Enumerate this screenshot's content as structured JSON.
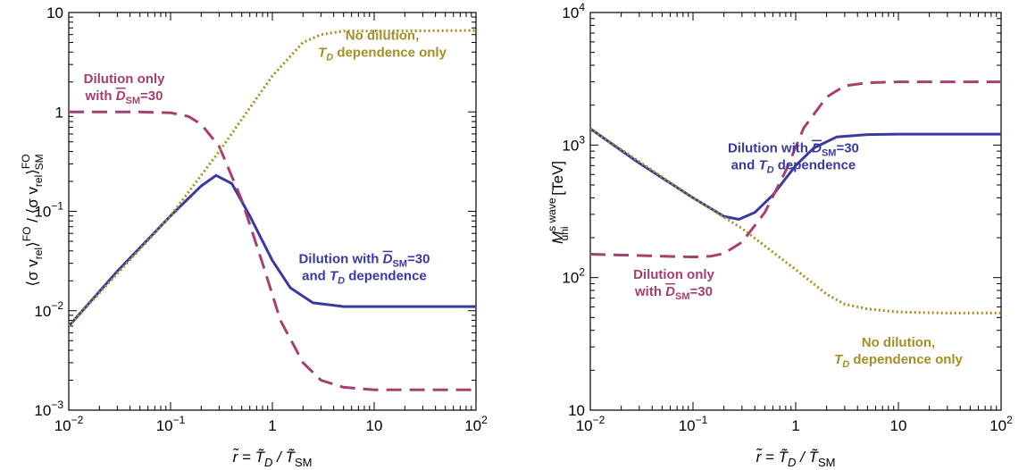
{
  "colors": {
    "solid": "#3a3a9c",
    "dashed": "#a3406f",
    "dotted": "#a38f2a"
  },
  "chart_data": [
    {
      "type": "line",
      "x_scale": "log",
      "y_scale": "log",
      "xlim": [
        0.01,
        100
      ],
      "ylim": [
        0.001,
        10
      ],
      "xlabel_main": "r̃ = T̃",
      "xlabel_sub1": "D",
      "xlabel_mid": " / T̃",
      "xlabel_sub2": "SM",
      "ylabel_1": "⟨σ v",
      "ylabel_rel1": "rel",
      "ylabel_2": "⟩",
      "ylabel_fo": "FO",
      "ylabel_3": " / ⟨σ v",
      "ylabel_rel2": "rel",
      "ylabel_4": "⟩",
      "ylabel_fo2": "FO",
      "ylabel_sm": "SM",
      "xticks": [
        {
          "v": 0.01,
          "b": "10",
          "e": "−2"
        },
        {
          "v": 0.1,
          "b": "10",
          "e": "−1"
        },
        {
          "v": 1,
          "b": "1",
          "e": ""
        },
        {
          "v": 10,
          "b": "10",
          "e": ""
        },
        {
          "v": 100,
          "b": "10",
          "e": "2"
        }
      ],
      "yticks": [
        {
          "v": 0.001,
          "b": "10",
          "e": "−3"
        },
        {
          "v": 0.01,
          "b": "10",
          "e": "−2"
        },
        {
          "v": 0.1,
          "b": "10",
          "e": "−1"
        },
        {
          "v": 1,
          "b": "1",
          "e": ""
        },
        {
          "v": 10,
          "b": "10",
          "e": ""
        }
      ],
      "series": [
        {
          "style": "solid",
          "x": [
            0.01,
            0.03,
            0.1,
            0.2,
            0.28,
            0.4,
            0.6,
            1.0,
            1.5,
            2.5,
            5,
            10,
            30,
            100
          ],
          "y": [
            0.007,
            0.025,
            0.09,
            0.18,
            0.23,
            0.19,
            0.09,
            0.032,
            0.017,
            0.012,
            0.011,
            0.011,
            0.011,
            0.011
          ]
        },
        {
          "style": "dashed",
          "x": [
            0.01,
            0.05,
            0.1,
            0.15,
            0.2,
            0.3,
            0.5,
            0.8,
            1.2,
            2,
            3,
            5,
            10,
            100
          ],
          "y": [
            1.0,
            1.0,
            0.98,
            0.9,
            0.75,
            0.45,
            0.13,
            0.03,
            0.008,
            0.003,
            0.002,
            0.0017,
            0.0016,
            0.0016
          ]
        },
        {
          "style": "dotted",
          "x": [
            0.01,
            0.1,
            0.3,
            1,
            2,
            3,
            5,
            10,
            100
          ],
          "y": [
            0.007,
            0.09,
            0.4,
            2.3,
            5.0,
            6.0,
            6.5,
            6.5,
            6.6
          ]
        }
      ],
      "annotations": [
        {
          "style": "dashed",
          "x": 0.035,
          "y": 1.95,
          "line1": "Dilution only",
          "line2_pre": "with ",
          "line2_var": "D",
          "line2_sub": "SM",
          "line2_post": "=30"
        },
        {
          "style": "dotted",
          "x": 12,
          "y": 5.3,
          "line1": "No dilution,",
          "line2_pre": "",
          "line2_var": "T",
          "line2_sub": "D",
          "line2_post": " dependence only"
        },
        {
          "style": "solid",
          "x": 8,
          "y": 0.03,
          "line1_pre": "Dilution with ",
          "line1_var": "D",
          "line1_sub": "SM",
          "line1_post": "=30",
          "line2_pre": "and ",
          "line2_var": "T",
          "line2_sub": "D",
          "line2_post": " dependence"
        }
      ]
    },
    {
      "type": "line",
      "x_scale": "log",
      "y_scale": "log",
      "xlim": [
        0.01,
        100
      ],
      "ylim": [
        10,
        10000
      ],
      "xlabel_main": "r̃ = T̃",
      "xlabel_sub1": "D",
      "xlabel_mid": " / T̃",
      "xlabel_sub2": "SM",
      "ylabel_1": "M",
      "ylabel_sup": "s wave",
      "ylabel_sub": "uni",
      "ylabel_unit": "[TeV]",
      "xticks": [
        {
          "v": 0.01,
          "b": "10",
          "e": "−2"
        },
        {
          "v": 0.1,
          "b": "10",
          "e": "−1"
        },
        {
          "v": 1,
          "b": "1",
          "e": ""
        },
        {
          "v": 10,
          "b": "10",
          "e": ""
        },
        {
          "v": 100,
          "b": "10",
          "e": "2"
        }
      ],
      "yticks": [
        {
          "v": 10,
          "b": "10",
          "e": ""
        },
        {
          "v": 100,
          "b": "10",
          "e": "2"
        },
        {
          "v": 1000,
          "b": "10",
          "e": "3"
        },
        {
          "v": 10000,
          "b": "10",
          "e": "4"
        }
      ],
      "series": [
        {
          "style": "solid",
          "x": [
            0.01,
            0.03,
            0.1,
            0.2,
            0.28,
            0.4,
            0.6,
            1,
            1.5,
            2.5,
            5,
            10,
            100
          ],
          "y": [
            1330,
            730,
            400,
            290,
            275,
            310,
            420,
            700,
            950,
            1150,
            1200,
            1210,
            1210
          ]
        },
        {
          "style": "dashed",
          "x": [
            0.01,
            0.05,
            0.1,
            0.15,
            0.2,
            0.3,
            0.5,
            0.8,
            1.2,
            2,
            3,
            5,
            10,
            100
          ],
          "y": [
            150,
            145,
            143,
            145,
            152,
            185,
            310,
            640,
            1350,
            2300,
            2800,
            2950,
            3000,
            3000
          ]
        },
        {
          "style": "dotted",
          "x": [
            0.01,
            0.1,
            0.3,
            1,
            2,
            3,
            5,
            10,
            30,
            100
          ],
          "y": [
            1330,
            400,
            235,
            115,
            75,
            63,
            58,
            55,
            54,
            54
          ]
        }
      ],
      "annotations": [
        {
          "style": "solid",
          "x": 0.95,
          "y": 880,
          "line1_pre": "Dilution with ",
          "line1_var": "D",
          "line1_sub": "SM",
          "line1_post": "=30",
          "line2_pre": "and ",
          "line2_var": "T",
          "line2_sub": "D",
          "line2_post": " dependence"
        },
        {
          "style": "dashed",
          "x": 0.065,
          "y": 98,
          "line1": "Dilution only",
          "line2_pre": "with ",
          "line2_var": "D",
          "line2_sub": "SM",
          "line2_post": "=30"
        },
        {
          "style": "dotted",
          "x": 10,
          "y": 30,
          "line1": "No dilution,",
          "line2_pre": "",
          "line2_var": "T",
          "line2_sub": "D",
          "line2_post": " dependence only"
        }
      ]
    }
  ]
}
